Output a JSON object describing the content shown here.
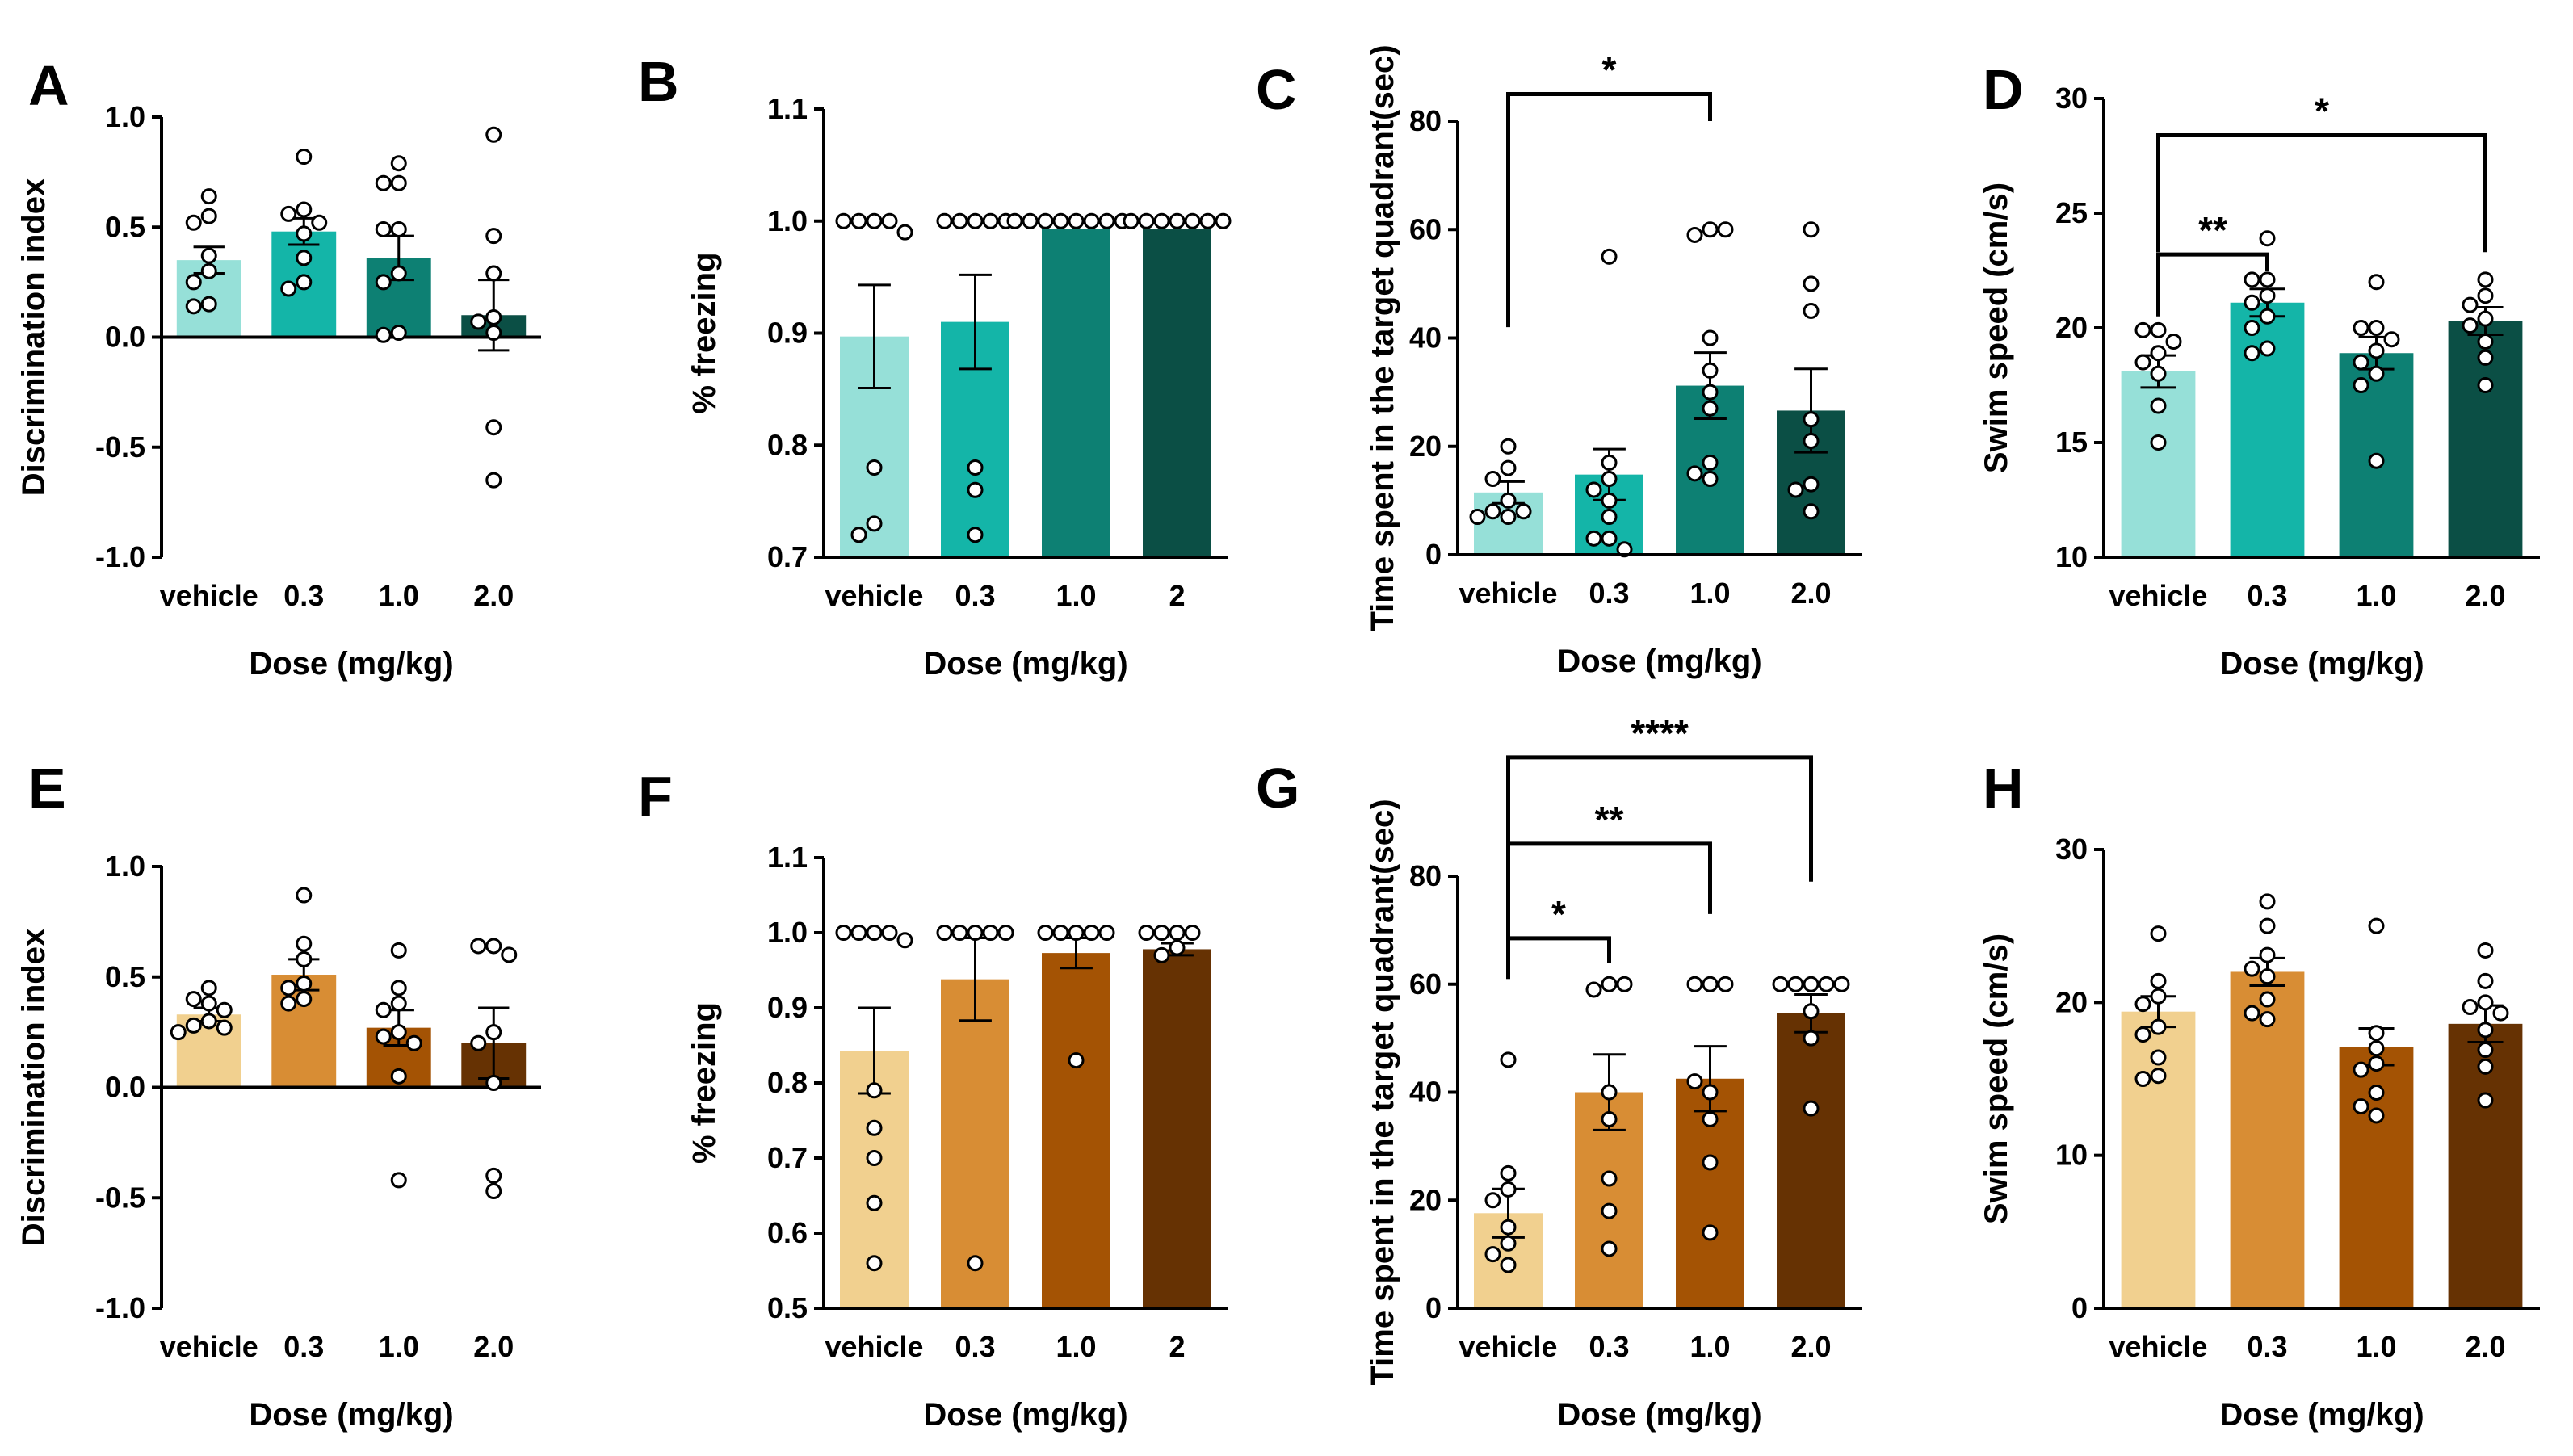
{
  "colors": {
    "teal": [
      "#96e0d8",
      "#14b5a8",
      "#0d8073",
      "#0b4f45"
    ],
    "brown": [
      "#f1d08f",
      "#d88d34",
      "#a45304",
      "#663203"
    ]
  },
  "chart_data": [
    {
      "id": "A",
      "type": "bar",
      "letter": "A",
      "palette": "teal",
      "categories": [
        "vehicle",
        "0.3",
        "1.0",
        "2.0"
      ],
      "values": [
        0.35,
        0.48,
        0.36,
        0.1
      ],
      "sem": [
        0.06,
        0.06,
        0.1,
        0.16
      ],
      "points": [
        [
          0.64,
          0.55,
          0.52,
          0.37,
          0.3,
          0.25,
          0.15,
          0.14
        ],
        [
          0.82,
          0.58,
          0.56,
          0.52,
          0.47,
          0.36,
          0.25,
          0.22
        ],
        [
          0.79,
          0.7,
          0.7,
          0.49,
          0.49,
          0.29,
          0.25,
          0.02,
          0.01
        ],
        [
          0.92,
          0.46,
          0.29,
          0.09,
          0.07,
          0.02,
          -0.41,
          -0.65
        ]
      ],
      "ylim": [
        -1.0,
        1.0
      ],
      "yticks": [
        "-1.0",
        "-0.5",
        "0.0",
        "0.5",
        "1.0"
      ],
      "baseline": 0.0,
      "ylabel": "Discrimination index",
      "xlabel": "Dose (mg/kg)",
      "significance": []
    },
    {
      "id": "B",
      "type": "bar",
      "letter": "B",
      "palette": "teal",
      "categories": [
        "vehicle",
        "0.3",
        "1.0",
        "2"
      ],
      "values": [
        0.897,
        0.91,
        0.993,
        0.993
      ],
      "sem": [
        0.046,
        0.042,
        0.0,
        0.0
      ],
      "points": [
        [
          1.0,
          1.0,
          1.0,
          1.0,
          0.99,
          0.78,
          0.73,
          0.72
        ],
        [
          1.0,
          1.0,
          1.0,
          1.0,
          1.0,
          0.78,
          0.76,
          0.72
        ],
        [
          1.0,
          1.0,
          1.0,
          1.0,
          1.0,
          1.0,
          1.0,
          1.0
        ],
        [
          1.0,
          1.0,
          1.0,
          1.0,
          1.0,
          1.0,
          1.0
        ]
      ],
      "ylim": [
        0.7,
        1.1
      ],
      "yticks": [
        "0.7",
        "0.8",
        "0.9",
        "1.0",
        "1.1"
      ],
      "baseline": 0.7,
      "ylabel": "% freezing",
      "xlabel": "Dose (mg/kg)",
      "significance": []
    },
    {
      "id": "C",
      "type": "bar",
      "letter": "C",
      "palette": "teal",
      "categories": [
        "vehicle",
        "0.3",
        "1.0",
        "2.0"
      ],
      "values": [
        11.5,
        14.8,
        31.2,
        26.6
      ],
      "sem": [
        2.0,
        4.7,
        6.1,
        7.7
      ],
      "points": [
        [
          20,
          16,
          14,
          10,
          8,
          8,
          7,
          7
        ],
        [
          55,
          17,
          14,
          12,
          10,
          7,
          3,
          3,
          1
        ],
        [
          60,
          59,
          60,
          40,
          34,
          30,
          27,
          17,
          15,
          14
        ],
        [
          60,
          50,
          45,
          25,
          21,
          13,
          12,
          8
        ]
      ],
      "ylim": [
        0,
        80
      ],
      "yticks": [
        "0",
        "20",
        "40",
        "60",
        "80"
      ],
      "baseline": 0,
      "ylabel": "Time spent in the target quadrant(sec)",
      "xlabel": "Dose (mg/kg)",
      "significance": [
        {
          "from": 0,
          "to": 2,
          "label": "*",
          "y": 85,
          "drop_from": 42,
          "drop_to": 80
        }
      ]
    },
    {
      "id": "D",
      "type": "bar",
      "letter": "D",
      "palette": "teal",
      "categories": [
        "vehicle",
        "0.3",
        "1.0",
        "2.0"
      ],
      "values": [
        18.1,
        21.1,
        18.9,
        20.3
      ],
      "sem": [
        0.7,
        0.6,
        0.7,
        0.6
      ],
      "points": [
        [
          19.9,
          19.9,
          19.4,
          18.9,
          18.5,
          18.0,
          16.6,
          15.0
        ],
        [
          23.9,
          22.1,
          22.1,
          21.4,
          21.1,
          20.5,
          20.0,
          19.1,
          18.9
        ],
        [
          22.0,
          20.0,
          20.0,
          19.5,
          19.0,
          18.5,
          18.0,
          17.5,
          14.2
        ],
        [
          22.1,
          21.4,
          21.0,
          20.4,
          20.1,
          19.4,
          18.7,
          17.5
        ]
      ],
      "ylim": [
        10,
        30
      ],
      "yticks": [
        "10",
        "15",
        "20",
        "25",
        "30"
      ],
      "baseline": 10,
      "ylabel": "Swim speed (cm/s)",
      "xlabel": "Dose (mg/kg)",
      "significance": [
        {
          "from": 0,
          "to": 3,
          "label": "*",
          "y": 28.4,
          "drop_from": 23.3,
          "drop_to": 23.3
        },
        {
          "from": 0,
          "to": 1,
          "label": "**",
          "y": 23.2,
          "drop_from": 20.5,
          "drop_to": 22.5
        }
      ]
    },
    {
      "id": "E",
      "type": "bar",
      "letter": "E",
      "palette": "brown",
      "categories": [
        "vehicle",
        "0.3",
        "1.0",
        "2.0"
      ],
      "values": [
        0.33,
        0.51,
        0.27,
        0.2
      ],
      "sem": [
        0.03,
        0.07,
        0.08,
        0.16
      ],
      "points": [
        [
          0.45,
          0.4,
          0.38,
          0.35,
          0.3,
          0.28,
          0.27,
          0.25
        ],
        [
          0.87,
          0.65,
          0.58,
          0.47,
          0.45,
          0.4,
          0.38
        ],
        [
          0.62,
          0.45,
          0.38,
          0.35,
          0.25,
          0.23,
          0.2,
          0.05,
          -0.42
        ],
        [
          0.64,
          0.64,
          0.6,
          0.25,
          0.2,
          0.02,
          -0.4,
          -0.47
        ]
      ],
      "ylim": [
        -1.0,
        1.0
      ],
      "yticks": [
        "-1.0",
        "-0.5",
        "0.0",
        "0.5",
        "1.0"
      ],
      "baseline": 0.0,
      "ylabel": "Discrimination index",
      "xlabel": "Dose (mg/kg)",
      "significance": []
    },
    {
      "id": "F",
      "type": "bar",
      "letter": "F",
      "palette": "brown",
      "categories": [
        "vehicle",
        "0.3",
        "1.0",
        "2"
      ],
      "values": [
        0.843,
        0.938,
        0.973,
        0.978
      ],
      "sem": [
        0.057,
        0.055,
        0.02,
        0.008
      ],
      "points": [
        [
          1.0,
          1.0,
          1.0,
          1.0,
          0.99,
          0.79,
          0.74,
          0.7,
          0.64,
          0.56
        ],
        [
          1.0,
          1.0,
          1.0,
          1.0,
          1.0,
          0.56
        ],
        [
          1.0,
          1.0,
          1.0,
          1.0,
          1.0,
          0.83
        ],
        [
          1.0,
          1.0,
          1.0,
          1.0,
          0.98,
          0.97
        ]
      ],
      "ylim": [
        0.5,
        1.1
      ],
      "yticks": [
        "0.5",
        "0.6",
        "0.7",
        "0.8",
        "0.9",
        "1.0",
        "1.1"
      ],
      "baseline": 0.5,
      "ylabel": "% freezing",
      "xlabel": "Dose (mg/kg)",
      "significance": []
    },
    {
      "id": "G",
      "type": "bar",
      "letter": "G",
      "palette": "brown",
      "categories": [
        "vehicle",
        "0.3",
        "1.0",
        "2.0"
      ],
      "values": [
        17.6,
        40.0,
        42.5,
        54.6
      ],
      "sem": [
        4.5,
        7.0,
        6.0,
        3.5
      ],
      "points": [
        [
          46,
          25,
          22,
          20,
          15,
          12,
          10,
          8
        ],
        [
          60,
          59,
          60,
          40,
          35,
          24,
          18,
          11
        ],
        [
          60,
          60,
          60,
          40,
          42,
          35,
          27,
          14
        ],
        [
          60,
          60,
          60,
          60,
          60,
          55,
          50,
          37
        ]
      ],
      "ylim": [
        0,
        80
      ],
      "yticks": [
        "0",
        "20",
        "40",
        "60",
        "80"
      ],
      "baseline": 0,
      "ylabel": "Time spent in the target quadrant(sec)",
      "xlabel": "Dose (mg/kg)",
      "significance": [
        {
          "from": 0,
          "to": 3,
          "label": "****",
          "y": 102,
          "drop_from": 61,
          "drop_to": 79
        },
        {
          "from": 0,
          "to": 2,
          "label": "**",
          "y": 86,
          "drop_from": 61,
          "drop_to": 73
        },
        {
          "from": 0,
          "to": 1,
          "label": "*",
          "y": 68.5,
          "drop_from": 61,
          "drop_to": 64
        }
      ]
    },
    {
      "id": "H",
      "type": "bar",
      "letter": "H",
      "palette": "brown",
      "categories": [
        "vehicle",
        "0.3",
        "1.0",
        "2.0"
      ],
      "values": [
        19.4,
        22.0,
        17.1,
        18.6
      ],
      "sem": [
        1.0,
        0.9,
        1.2,
        1.2
      ],
      "points": [
        [
          24.5,
          21.4,
          20.4,
          19.9,
          18.4,
          17.9,
          16.4,
          15.2,
          15.0
        ],
        [
          26.6,
          25.0,
          23.1,
          22.2,
          21.7,
          20.2,
          19.3,
          18.9
        ],
        [
          25.0,
          18.0,
          17.0,
          16.0,
          15.6,
          14.1,
          13.2,
          12.6
        ],
        [
          23.4,
          21.4,
          20.0,
          19.7,
          19.3,
          18.2,
          16.9,
          15.8,
          13.6
        ]
      ],
      "ylim": [
        0,
        30
      ],
      "yticks": [
        "0",
        "10",
        "20",
        "30"
      ],
      "baseline": 0,
      "ylabel": "Swim speed (cm/s)",
      "xlabel": "Dose (mg/kg)",
      "significance": []
    }
  ]
}
